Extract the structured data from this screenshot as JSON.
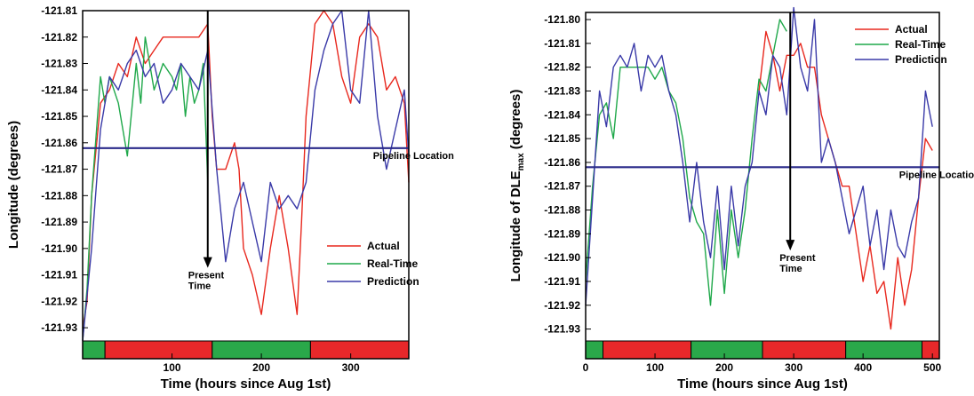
{
  "chart_data": [
    {
      "type": "line",
      "title": "",
      "xlabel": "Time (hours since Aug 1st)",
      "ylabel": "Longitude (degrees)",
      "xlim": [
        0,
        365
      ],
      "ylim": [
        -121.935,
        -121.81
      ],
      "x_ticks": [
        100,
        200,
        300
      ],
      "y_ticks": [
        -121.81,
        -121.82,
        -121.83,
        -121.84,
        -121.85,
        -121.86,
        -121.87,
        -121.88,
        -121.89,
        -121.9,
        -121.91,
        -121.92,
        -121.93
      ],
      "y_tick_labels": [
        "-121.81",
        "-121.82",
        "-121.83",
        "-121.84",
        "-121.85",
        "-121.86",
        "-121.87",
        "-121.88",
        "-121.89",
        "-121.90",
        "-121.91",
        "-121.92",
        "-121.93"
      ],
      "legend": "center-right",
      "grid": false,
      "series": [
        {
          "name": "Actual",
          "color": "#e8281e",
          "x": [
            0,
            5,
            10,
            20,
            30,
            40,
            50,
            60,
            70,
            80,
            90,
            100,
            110,
            120,
            130,
            140,
            145,
            150,
            160,
            170,
            175,
            180,
            190,
            200,
            210,
            220,
            230,
            240,
            245,
            250,
            260,
            270,
            280,
            290,
            300,
            310,
            320,
            330,
            340,
            350,
            360,
            365
          ],
          "y": [
            -121.93,
            -121.92,
            -121.88,
            -121.845,
            -121.84,
            -121.83,
            -121.835,
            -121.82,
            -121.83,
            -121.825,
            -121.82,
            -121.82,
            -121.82,
            -121.82,
            -121.82,
            -121.815,
            -121.85,
            -121.87,
            -121.87,
            -121.86,
            -121.87,
            -121.9,
            -121.91,
            -121.925,
            -121.9,
            -121.88,
            -121.9,
            -121.925,
            -121.89,
            -121.85,
            -121.815,
            -121.81,
            -121.815,
            -121.835,
            -121.845,
            -121.82,
            -121.815,
            -121.82,
            -121.84,
            -121.835,
            -121.845,
            -121.875
          ]
        },
        {
          "name": "Real-Time",
          "color": "#1fa84a",
          "x": [
            0,
            5,
            10,
            20,
            25,
            30,
            40,
            50,
            60,
            65,
            70,
            80,
            90,
            100,
            105,
            110,
            115,
            120,
            125,
            130,
            135,
            140
          ],
          "y": [
            -121.935,
            -121.915,
            -121.88,
            -121.835,
            -121.845,
            -121.835,
            -121.845,
            -121.865,
            -121.83,
            -121.845,
            -121.82,
            -121.84,
            -121.83,
            -121.835,
            -121.84,
            -121.83,
            -121.85,
            -121.835,
            -121.845,
            -121.84,
            -121.83,
            -121.875
          ]
        },
        {
          "name": "Prediction",
          "color": "#3a3aa8",
          "x": [
            0,
            10,
            20,
            30,
            40,
            50,
            60,
            70,
            80,
            90,
            100,
            110,
            120,
            130,
            140,
            150,
            160,
            170,
            180,
            190,
            200,
            210,
            220,
            230,
            240,
            250,
            260,
            270,
            280,
            290,
            300,
            310,
            320,
            330,
            340,
            350,
            360,
            365
          ],
          "y": [
            -121.935,
            -121.9,
            -121.855,
            -121.835,
            -121.84,
            -121.83,
            -121.825,
            -121.835,
            -121.83,
            -121.845,
            -121.84,
            -121.83,
            -121.835,
            -121.84,
            -121.825,
            -121.87,
            -121.905,
            -121.885,
            -121.875,
            -121.89,
            -121.905,
            -121.875,
            -121.885,
            -121.88,
            -121.885,
            -121.875,
            -121.84,
            -121.825,
            -121.815,
            -121.81,
            -121.84,
            -121.845,
            -121.81,
            -121.85,
            -121.87,
            -121.855,
            -121.84,
            -121.865
          ]
        },
        {
          "name": "Pipeline Location",
          "color": "#2a2a8a",
          "x": [
            0,
            365
          ],
          "y": [
            -121.862,
            -121.862
          ]
        }
      ],
      "annotations": [
        {
          "text": "Pipeline Location",
          "x": 325,
          "y": -121.862
        },
        {
          "text": "Present\nTime",
          "x": 140,
          "y": -121.91
        }
      ],
      "present_time_x": 140,
      "bands": [
        {
          "from": 0,
          "to": 25,
          "color": "#2aa84a"
        },
        {
          "from": 25,
          "to": 145,
          "color": "#e8282a"
        },
        {
          "from": 145,
          "to": 255,
          "color": "#2aa84a"
        },
        {
          "from": 255,
          "to": 365,
          "color": "#e8282a"
        }
      ]
    },
    {
      "type": "line",
      "title": "",
      "xlabel": "Time (hours since Aug 1st)",
      "ylabel": "Longitude of DLE",
      "ylabel_sub": "max",
      "ylabel_tail": " (degrees)",
      "xlim": [
        0,
        510
      ],
      "ylim": [
        -121.935,
        -121.797
      ],
      "x_ticks": [
        0,
        100,
        200,
        300,
        400,
        500
      ],
      "y_ticks": [
        -121.8,
        -121.81,
        -121.82,
        -121.83,
        -121.84,
        -121.85,
        -121.86,
        -121.87,
        -121.88,
        -121.89,
        -121.9,
        -121.91,
        -121.92,
        -121.93
      ],
      "y_tick_labels": [
        "-121.80",
        "-121.81",
        "-121.82",
        "-121.83",
        "-121.84",
        "-121.85",
        "-121.86",
        "-121.87",
        "-121.88",
        "-121.89",
        "-121.90",
        "-121.91",
        "-121.92",
        "-121.93"
      ],
      "legend": "top-right",
      "grid": false,
      "series": [
        {
          "name": "Actual",
          "color": "#e8281e",
          "x": [
            250,
            260,
            270,
            280,
            290,
            300,
            310,
            320,
            330,
            340,
            350,
            360,
            370,
            380,
            390,
            400,
            410,
            420,
            430,
            440,
            450,
            460,
            470,
            480,
            490,
            500
          ],
          "y": [
            -121.83,
            -121.805,
            -121.815,
            -121.83,
            -121.815,
            -121.815,
            -121.81,
            -121.82,
            -121.82,
            -121.84,
            -121.85,
            -121.86,
            -121.87,
            -121.87,
            -121.89,
            -121.91,
            -121.895,
            -121.915,
            -121.91,
            -121.93,
            -121.9,
            -121.92,
            -121.905,
            -121.875,
            -121.85,
            -121.855
          ]
        },
        {
          "name": "Real-Time",
          "color": "#1fa84a",
          "x": [
            0,
            10,
            20,
            30,
            40,
            50,
            60,
            70,
            80,
            90,
            100,
            110,
            120,
            130,
            140,
            150,
            160,
            170,
            180,
            190,
            200,
            210,
            220,
            230,
            240,
            250,
            260,
            270,
            280,
            290
          ],
          "y": [
            -121.91,
            -121.87,
            -121.84,
            -121.835,
            -121.85,
            -121.82,
            -121.82,
            -121.82,
            -121.82,
            -121.82,
            -121.825,
            -121.82,
            -121.83,
            -121.835,
            -121.85,
            -121.875,
            -121.885,
            -121.89,
            -121.92,
            -121.88,
            -121.915,
            -121.88,
            -121.9,
            -121.88,
            -121.85,
            -121.825,
            -121.83,
            -121.815,
            -121.8,
            -121.805
          ]
        },
        {
          "name": "Prediction",
          "color": "#3a3aa8",
          "x": [
            0,
            10,
            20,
            30,
            40,
            50,
            60,
            70,
            80,
            90,
            100,
            110,
            120,
            130,
            140,
            150,
            160,
            170,
            180,
            190,
            200,
            210,
            220,
            230,
            240,
            250,
            260,
            270,
            280,
            290,
            300,
            310,
            320,
            330,
            340,
            350,
            360,
            370,
            380,
            390,
            400,
            410,
            420,
            430,
            440,
            450,
            460,
            470,
            480,
            490,
            500
          ],
          "y": [
            -121.92,
            -121.875,
            -121.83,
            -121.845,
            -121.82,
            -121.815,
            -121.82,
            -121.81,
            -121.83,
            -121.815,
            -121.82,
            -121.815,
            -121.83,
            -121.84,
            -121.86,
            -121.885,
            -121.86,
            -121.885,
            -121.9,
            -121.87,
            -121.905,
            -121.87,
            -121.895,
            -121.87,
            -121.86,
            -121.83,
            -121.84,
            -121.815,
            -121.82,
            -121.84,
            -121.795,
            -121.82,
            -121.83,
            -121.8,
            -121.86,
            -121.85,
            -121.86,
            -121.875,
            -121.89,
            -121.88,
            -121.87,
            -121.895,
            -121.88,
            -121.905,
            -121.88,
            -121.895,
            -121.9,
            -121.885,
            -121.875,
            -121.83,
            -121.845
          ]
        },
        {
          "name": "Pipeline Location",
          "color": "#2a2a8a",
          "x": [
            0,
            510
          ],
          "y": [
            -121.862,
            -121.862
          ]
        }
      ],
      "annotations": [
        {
          "text": "Pipeline Location",
          "x": 452,
          "y": -121.862
        },
        {
          "text": "Present\nTime",
          "x": 295,
          "y": -121.9
        }
      ],
      "present_time_x": 295,
      "bands": [
        {
          "from": 0,
          "to": 25,
          "color": "#2aa84a"
        },
        {
          "from": 25,
          "to": 152,
          "color": "#e8282a"
        },
        {
          "from": 152,
          "to": 255,
          "color": "#2aa84a"
        },
        {
          "from": 255,
          "to": 375,
          "color": "#e8282a"
        },
        {
          "from": 375,
          "to": 485,
          "color": "#2aa84a"
        },
        {
          "from": 485,
          "to": 510,
          "color": "#e8282a"
        }
      ]
    }
  ]
}
